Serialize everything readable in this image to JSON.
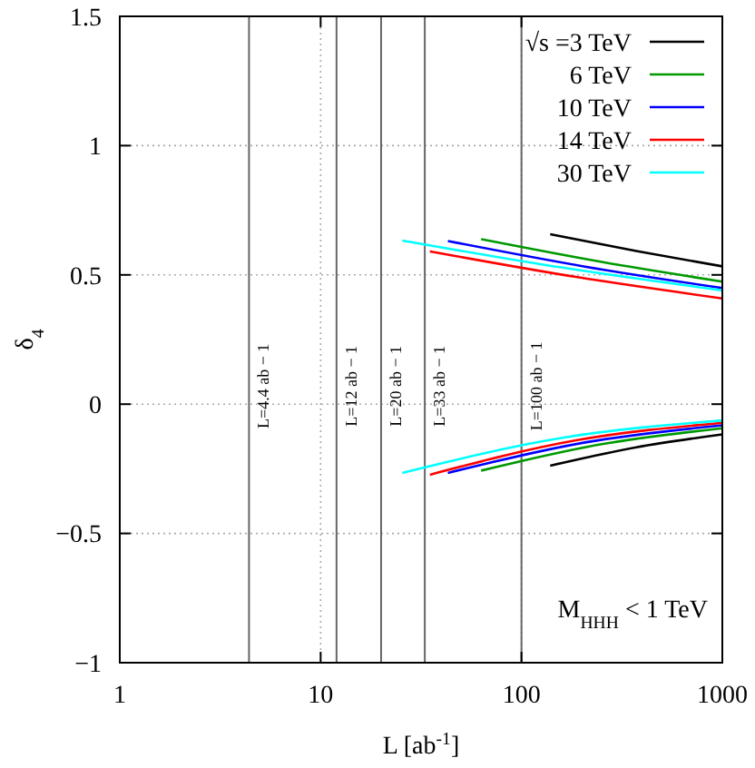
{
  "chart_data": {
    "type": "line",
    "xlabel": "L [ab$^{-1}$]",
    "ylabel": "δ$_{4}$",
    "log": "x",
    "grid": true,
    "legend": "top right",
    "line_style": "solid",
    "xlim": [
      1,
      1000
    ],
    "xticks": [
      1,
      10,
      100,
      1000
    ],
    "ylim": [
      -1,
      1.5
    ],
    "yticks": [
      {
        "value": -1,
        "label": "−1"
      },
      {
        "value": -0.5,
        "label": "−0.5"
      },
      0,
      0.5,
      1,
      1.5
    ],
    "series": [
      {
        "name": "√s =3 TeV",
        "color": "#000000",
        "x": [
          139,
          373,
          1000
        ],
        "values": [
          0.657,
          0.592,
          0.533
        ]
      },
      {
        "color": "#000000",
        "x": [
          139,
          373,
          1000
        ],
        "values": [
          -0.238,
          -0.167,
          -0.117
        ]
      },
      {
        "name": "6 TeV",
        "color": "#009900",
        "x": [
          63,
          251,
          1000
        ],
        "values": [
          0.638,
          0.55,
          0.474
        ]
      },
      {
        "color": "#009900",
        "x": [
          63,
          251,
          1000
        ],
        "values": [
          -0.257,
          -0.155,
          -0.093
        ]
      },
      {
        "name": "10 TeV",
        "color": "#0000ff",
        "x": [
          43,
          207,
          1000
        ],
        "values": [
          0.631,
          0.532,
          0.449
        ]
      },
      {
        "color": "#0000ff",
        "x": [
          43,
          207,
          1000
        ],
        "values": [
          -0.266,
          -0.148,
          -0.082
        ]
      },
      {
        "name": "14 TeV",
        "color": "#ff0000",
        "x": [
          35,
          187,
          1000
        ],
        "values": [
          0.591,
          0.492,
          0.409
        ]
      },
      {
        "color": "#ff0000",
        "x": [
          35,
          187,
          1000
        ],
        "values": [
          -0.273,
          -0.14,
          -0.072
        ]
      },
      {
        "name": "30 TeV",
        "color": "#00ffff",
        "x": [
          25.5,
          160,
          1000
        ],
        "values": [
          0.633,
          0.528,
          0.44
        ]
      },
      {
        "color": "#00ffff",
        "x": [
          25.5,
          160,
          1000
        ],
        "values": [
          -0.266,
          -0.13,
          -0.063
        ]
      }
    ],
    "ref_lines": [
      {
        "axis": "x",
        "value": 4.4,
        "label": "L=4.4 ab − 1"
      },
      {
        "axis": "x",
        "value": 12,
        "label": "L=12 ab − 1"
      },
      {
        "axis": "x",
        "value": 20,
        "label": "L=20 ab − 1"
      },
      {
        "axis": "x",
        "value": 33,
        "label": "L=33 ab − 1"
      },
      {
        "axis": "x",
        "value": 100,
        "label": "L=100 ab − 1"
      }
    ],
    "annotations": [
      "M$_{HHH}$ < 1 TeV"
    ]
  }
}
